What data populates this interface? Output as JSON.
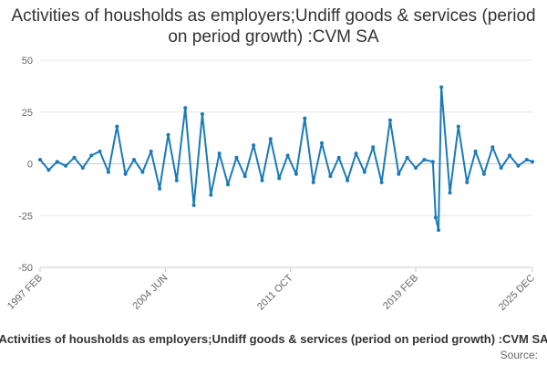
{
  "chart_data": {
    "type": "line",
    "title": "Activities of housholds as employers;Undiff goods & services (period on period growth) :CVM SA",
    "legend_title": "Activities of housholds as employers;Undiff goods & services (period on period growth) :CVM SA",
    "source": "Source:",
    "ylim": [
      -50,
      50
    ],
    "y_ticks": [
      50,
      25,
      0,
      -25,
      -50
    ],
    "x_ticks": [
      "1997 FEB",
      "2004 JUN",
      "2011 OCT",
      "2019 FEB",
      "2025 DEC"
    ],
    "x_range": [
      "1997-02",
      "2025-12"
    ],
    "grid": true,
    "series": [
      {
        "name": "",
        "color": "#1a7ab8",
        "x": [
          "1997-02",
          "1997-08",
          "1998-02",
          "1998-08",
          "1999-02",
          "1999-08",
          "2000-02",
          "2000-08",
          "2001-02",
          "2001-08",
          "2002-02",
          "2002-08",
          "2003-02",
          "2003-08",
          "2004-02",
          "2004-08",
          "2005-02",
          "2005-08",
          "2006-02",
          "2006-08",
          "2007-02",
          "2007-08",
          "2008-02",
          "2008-08",
          "2009-02",
          "2009-08",
          "2010-02",
          "2010-08",
          "2011-02",
          "2011-08",
          "2012-02",
          "2012-08",
          "2013-02",
          "2013-08",
          "2014-02",
          "2014-08",
          "2015-02",
          "2015-08",
          "2016-02",
          "2016-08",
          "2017-02",
          "2017-08",
          "2018-02",
          "2018-08",
          "2019-02",
          "2019-08",
          "2020-02",
          "2020-04",
          "2020-06",
          "2020-08",
          "2021-02",
          "2021-08",
          "2022-02",
          "2022-08",
          "2023-02",
          "2023-08",
          "2024-02",
          "2024-08",
          "2025-02",
          "2025-08",
          "2025-12"
        ],
        "values": [
          2,
          -3,
          1,
          -1,
          3,
          -2,
          4,
          6,
          -4,
          18,
          -5,
          2,
          -4,
          6,
          -12,
          14,
          -8,
          27,
          -20,
          24,
          -15,
          5,
          -10,
          3,
          -6,
          9,
          -8,
          12,
          -7,
          4,
          -5,
          22,
          -9,
          10,
          -6,
          3,
          -8,
          5,
          -4,
          8,
          -9,
          21,
          -5,
          3,
          -2,
          2,
          1,
          -26,
          -32,
          37,
          -14,
          18,
          -9,
          6,
          -5,
          8,
          -2,
          4,
          -1,
          2,
          1
        ]
      }
    ]
  }
}
